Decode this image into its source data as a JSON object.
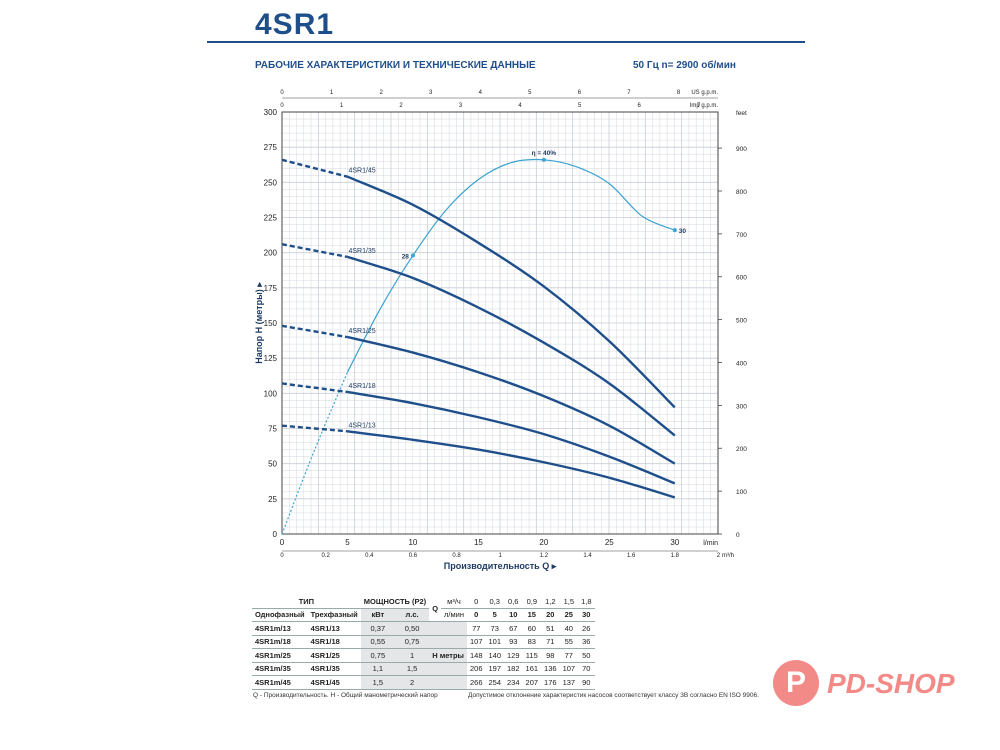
{
  "header": {
    "title": "4SR1",
    "subtitle": "РАБОЧИЕ ХАРАКТЕРИСТИКИ И ТЕХНИЧЕСКИЕ ДАННЫЕ",
    "frequency": "50 Гц   n= 2900 об/мин"
  },
  "chart_data": {
    "type": "line",
    "ylabel": "Напор H (метры)",
    "xlabel": "Производительность Q",
    "y_ticks": [
      0,
      25,
      50,
      75,
      100,
      125,
      150,
      175,
      200,
      225,
      250,
      275,
      300
    ],
    "ylim": [
      0,
      300
    ],
    "xlim_lmin": [
      0,
      33.3
    ],
    "x_ticks_lmin": [
      0,
      5,
      10,
      15,
      20,
      25,
      30
    ],
    "x_unit_lmin": "l/min",
    "x_ticks_m3h": [
      "0",
      "0.2",
      "0.4",
      "0.6",
      "0.8",
      "1",
      "1.2",
      "1.4",
      "1.6",
      "1.8",
      "2"
    ],
    "x_unit_m3h": "m³/h",
    "top_ticks_us": [
      "0",
      "1",
      "2",
      "3",
      "4",
      "5",
      "6",
      "7",
      "8"
    ],
    "top_unit_us": "US g.p.m.",
    "top_ticks_imp": [
      "0",
      "1",
      "2",
      "3",
      "4",
      "5",
      "6",
      "7"
    ],
    "top_unit_imp": "Imp g.p.m.",
    "right_ticks_feet": [
      "0",
      "100",
      "200",
      "300",
      "400",
      "500",
      "600",
      "700",
      "800",
      "900"
    ],
    "right_unit": "feet",
    "grid": true,
    "series": [
      {
        "name": "4SR1/45",
        "x": [
          0,
          5,
          10,
          15,
          20,
          25,
          30
        ],
        "y": [
          266,
          254,
          234,
          207,
          176,
          137,
          90
        ]
      },
      {
        "name": "4SR1/35",
        "x": [
          0,
          5,
          10,
          15,
          20,
          25,
          30
        ],
        "y": [
          206,
          197,
          182,
          161,
          136,
          107,
          70
        ]
      },
      {
        "name": "4SR1/25",
        "x": [
          0,
          5,
          10,
          15,
          20,
          25,
          30
        ],
        "y": [
          148,
          140,
          129,
          115,
          98,
          77,
          50
        ]
      },
      {
        "name": "4SR1/18",
        "x": [
          0,
          5,
          10,
          15,
          20,
          25,
          30
        ],
        "y": [
          107,
          101,
          93,
          83,
          71,
          55,
          36
        ]
      },
      {
        "name": "4SR1/13",
        "x": [
          0,
          5,
          10,
          15,
          20,
          25,
          30
        ],
        "y": [
          77,
          73,
          67,
          60,
          51,
          40,
          26
        ]
      }
    ],
    "efficiency": {
      "x": [
        0,
        2.5,
        5,
        7.5,
        10,
        12.5,
        15,
        17.5,
        20,
        22.5,
        25,
        27.5,
        30
      ],
      "y": [
        0,
        60,
        115,
        160,
        198,
        230,
        252,
        264,
        266,
        261,
        249,
        226,
        216
      ],
      "labels": [
        {
          "text": "28",
          "x": 10,
          "y": 198
        },
        {
          "text": "η = 40%",
          "x": 20,
          "y": 266
        },
        {
          "text": "30",
          "x": 30,
          "y": 216
        }
      ]
    }
  },
  "table": {
    "h_type": "ТИП",
    "h_power": "МОЩНОСТЬ (P2)",
    "h_single": "Однофазный",
    "h_three": "Трехфазный",
    "h_kw": "кВт",
    "h_hp": "л.с.",
    "q_label": "Q",
    "q_m3h_unit": "м³/ч",
    "q_lmin_unit": "л/мин",
    "q_m3h": [
      "0",
      "0,3",
      "0,6",
      "0,9",
      "1,2",
      "1,5",
      "1,8"
    ],
    "q_lmin": [
      "0",
      "5",
      "10",
      "15",
      "20",
      "25",
      "30"
    ],
    "h_label": "H  метры",
    "rows": [
      {
        "single": "4SR1m/13",
        "three": "4SR1/13",
        "kw": "0,37",
        "hp": "0,50",
        "h": [
          "77",
          "73",
          "67",
          "60",
          "51",
          "40",
          "26"
        ]
      },
      {
        "single": "4SR1m/18",
        "three": "4SR1/18",
        "kw": "0,55",
        "hp": "0,75",
        "h": [
          "107",
          "101",
          "93",
          "83",
          "71",
          "55",
          "36"
        ]
      },
      {
        "single": "4SR1m/25",
        "three": "4SR1/25",
        "kw": "0,75",
        "hp": "1",
        "h": [
          "148",
          "140",
          "129",
          "115",
          "98",
          "77",
          "50"
        ]
      },
      {
        "single": "4SR1m/35",
        "three": "4SR1/35",
        "kw": "1,1",
        "hp": "1,5",
        "h": [
          "206",
          "197",
          "182",
          "161",
          "136",
          "107",
          "70"
        ]
      },
      {
        "single": "4SR1m/45",
        "three": "4SR1/45",
        "kw": "1,5",
        "hp": "2",
        "h": [
          "266",
          "254",
          "234",
          "207",
          "176",
          "137",
          "90"
        ]
      }
    ]
  },
  "footer": {
    "left": "Q - Производительность.  H - Общий манометрический напор",
    "right": "Допустимое отклонение характеристик насосов соответствует классу 3B согласно EN ISO 9906."
  },
  "logo": {
    "letter": "P",
    "text": "PD-SHOP"
  },
  "colors": {
    "curve": "#1f4f8b",
    "efficiency": "#3ba3d0",
    "grid": "#c8ced6",
    "logo": "#f28a87"
  }
}
